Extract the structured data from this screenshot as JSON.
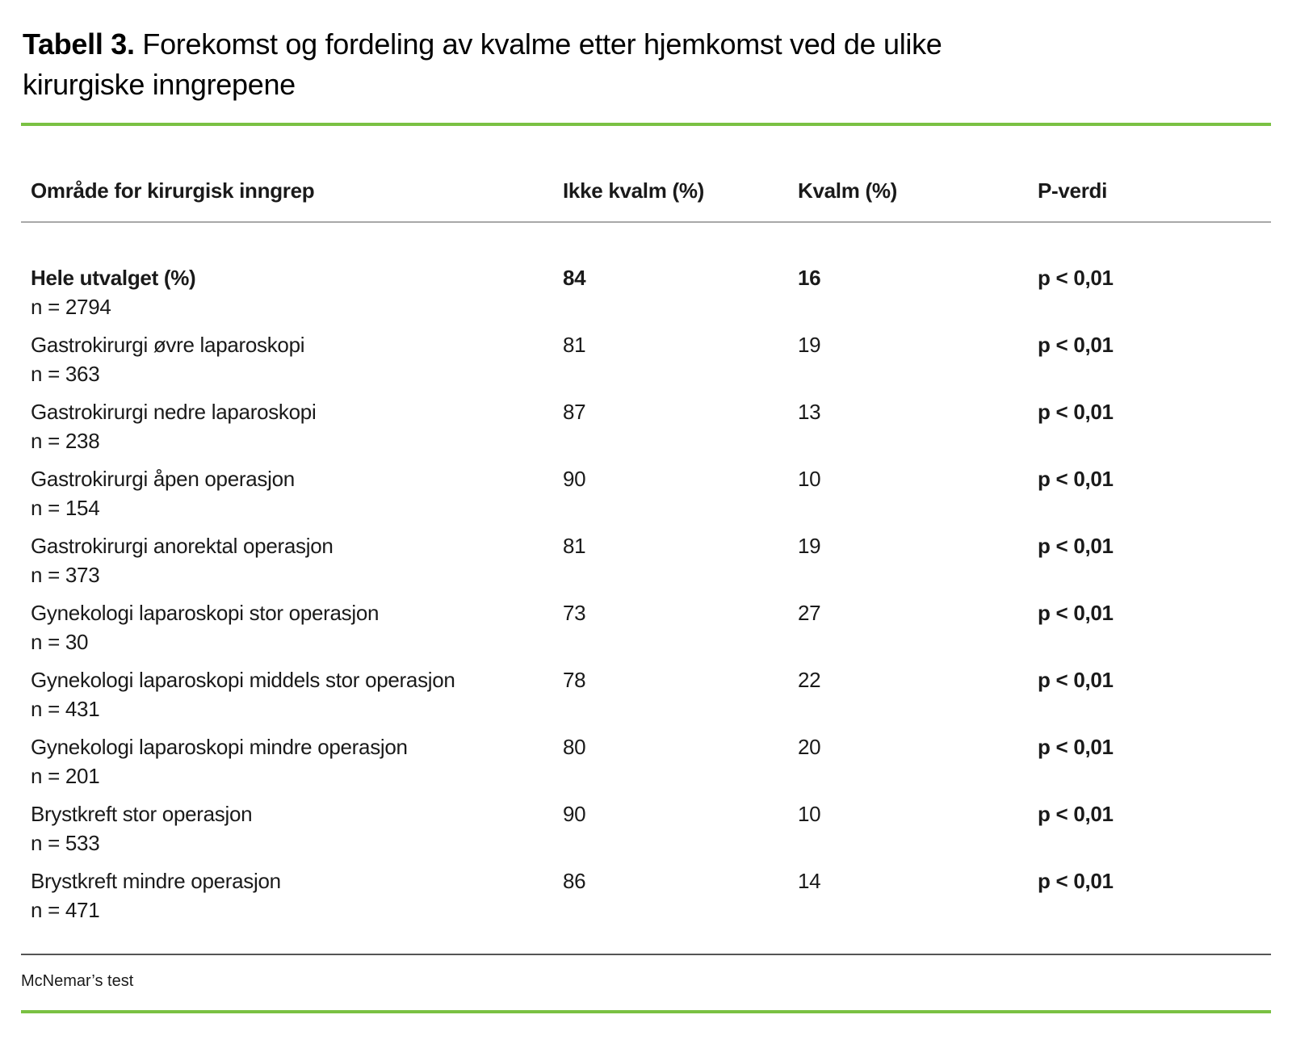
{
  "title": {
    "label": "Tabell 3.",
    "text": "Forekomst og fordeling av kvalme etter hjemkomst ved de ulike kirurgiske inngrepene"
  },
  "colors": {
    "accent_green": "#7ac143",
    "header_rule_gray": "#a8a8a8",
    "footer_rule_dark": "#555555"
  },
  "table": {
    "columns": {
      "area": "Område for kirurgisk inngrep",
      "no_nausea": "Ikke kvalm (%)",
      "nausea": "Kvalm (%)",
      "p": "P-verdi"
    },
    "rows": [
      {
        "name": "Hele utvalget (%)",
        "n": "n = 2794",
        "no_nausea": "84",
        "nausea": "16",
        "p": "p < 0,01",
        "emphasis": true
      },
      {
        "name": "Gastrokirurgi øvre laparoskopi",
        "n": "n = 363",
        "no_nausea": "81",
        "nausea": "19",
        "p": "p < 0,01",
        "emphasis": false
      },
      {
        "name": "Gastrokirurgi nedre laparoskopi",
        "n": "n = 238",
        "no_nausea": "87",
        "nausea": "13",
        "p": "p < 0,01",
        "emphasis": false
      },
      {
        "name": "Gastrokirurgi åpen operasjon",
        "n": "n = 154",
        "no_nausea": "90",
        "nausea": "10",
        "p": "p < 0,01",
        "emphasis": false
      },
      {
        "name": "Gastrokirurgi anorektal operasjon",
        "n": "n = 373",
        "no_nausea": "81",
        "nausea": "19",
        "p": "p < 0,01",
        "emphasis": false
      },
      {
        "name": "Gynekologi laparoskopi stor operasjon",
        "n": "n = 30",
        "no_nausea": "73",
        "nausea": "27",
        "p": "p < 0,01",
        "emphasis": false
      },
      {
        "name": "Gynekologi laparoskopi middels stor operasjon",
        "n": "n = 431",
        "no_nausea": "78",
        "nausea": "22",
        "p": "p < 0,01",
        "emphasis": false
      },
      {
        "name": "Gynekologi laparoskopi mindre operasjon",
        "n": "n = 201",
        "no_nausea": "80",
        "nausea": "20",
        "p": "p < 0,01",
        "emphasis": false
      },
      {
        "name": "Brystkreft stor operasjon",
        "n": "n = 533",
        "no_nausea": "90",
        "nausea": "10",
        "p": "p < 0,01",
        "emphasis": false
      },
      {
        "name": "Brystkreft mindre operasjon",
        "n": "n = 471",
        "no_nausea": "86",
        "nausea": "14",
        "p": "p < 0,01",
        "emphasis": false
      }
    ],
    "footnote": "McNemar’s test"
  }
}
